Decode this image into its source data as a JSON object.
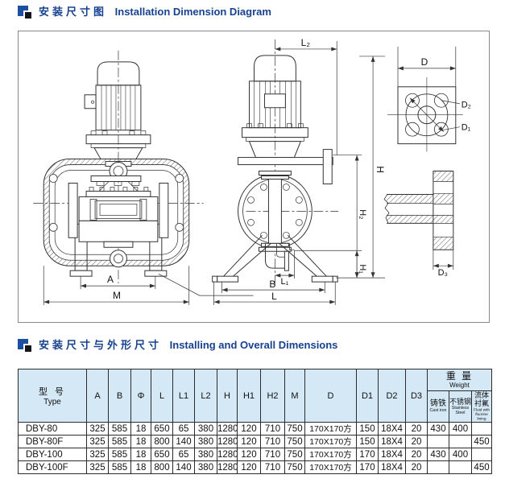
{
  "header1": {
    "zh": "安装尺寸图",
    "en": "Installation Dimension Diagram"
  },
  "header2": {
    "zh": "安装尺寸与外形尺寸",
    "en": "Installing and Overall Dimensions"
  },
  "colors": {
    "accent_navy": "#17418f",
    "logo_blue": "#1d4fa1",
    "table_header_bg": "#d4e8f6",
    "line": "#333333"
  },
  "diagram": {
    "labels": {
      "a": "A",
      "m": "M",
      "l2": "L₂",
      "h": "H",
      "h2": "H₂",
      "h1": "H₁",
      "l1": "L₁",
      "b": "B",
      "l": "L",
      "d": "D",
      "d1": "D₁",
      "d2": "D₂",
      "d3": "D₃"
    }
  },
  "table": {
    "type_header": {
      "zh": "型 号",
      "en": "Type"
    },
    "columns": [
      "A",
      "B",
      "Φ",
      "L",
      "L1",
      "L2",
      "H",
      "H1",
      "H2",
      "M",
      "D",
      "D1",
      "D2",
      "D3"
    ],
    "weight_header": {
      "zh": "重 量",
      "en": "Weight"
    },
    "weight_subcols": [
      {
        "zh": "铸铁",
        "en": "Cast iron"
      },
      {
        "zh": "不锈钢",
        "en": "Stainless Steel"
      },
      {
        "zh": "流体衬氟",
        "en": "Fluid with fluorine lining"
      }
    ],
    "rows": [
      {
        "type": "DBY-80",
        "values": [
          "325",
          "585",
          "18",
          "650",
          "65",
          "380",
          "1280",
          "120",
          "710",
          "750",
          "170X170方",
          "150",
          "18X4",
          "20",
          "430",
          "400",
          ""
        ]
      },
      {
        "type": "DBY-80F",
        "values": [
          "325",
          "585",
          "18",
          "800",
          "140",
          "380",
          "1280",
          "120",
          "710",
          "750",
          "170X170方",
          "150",
          "18X4",
          "20",
          "",
          "",
          "450"
        ]
      },
      {
        "type": "DBY-100",
        "values": [
          "325",
          "585",
          "18",
          "650",
          "65",
          "380",
          "1280",
          "120",
          "710",
          "750",
          "170X170方",
          "170",
          "18X4",
          "20",
          "430",
          "400",
          ""
        ]
      },
      {
        "type": "DBY-100F",
        "values": [
          "325",
          "585",
          "18",
          "800",
          "140",
          "380",
          "1280",
          "120",
          "710",
          "750",
          "170X170方",
          "170",
          "18X4",
          "20",
          "",
          "",
          "450"
        ]
      }
    ]
  }
}
